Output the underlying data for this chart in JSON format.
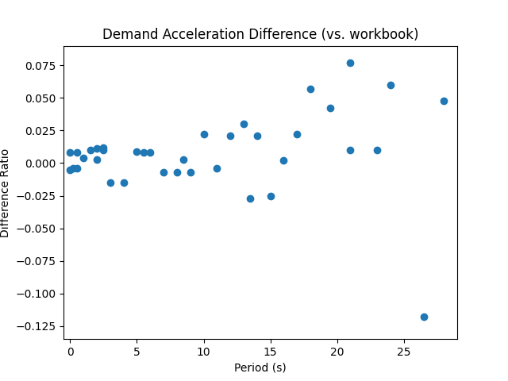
{
  "title": "Demand Acceleration Difference (vs. workbook)",
  "xlabel": "Period (s)",
  "ylabel": "Difference Ratio",
  "marker_color": "#1f77b4",
  "marker_size": 36,
  "x": [
    0.0,
    0.0,
    0.2,
    0.5,
    0.5,
    1.0,
    1.5,
    2.0,
    2.0,
    2.5,
    2.5,
    3.0,
    4.0,
    5.0,
    5.5,
    6.0,
    7.0,
    8.0,
    8.5,
    9.0,
    10.0,
    11.0,
    12.0,
    13.0,
    13.5,
    14.0,
    15.0,
    16.0,
    17.0,
    18.0,
    19.5,
    21.0,
    21.0,
    23.0,
    24.0,
    26.5,
    28.0
  ],
  "y": [
    0.008,
    -0.005,
    -0.004,
    0.008,
    -0.004,
    0.004,
    0.01,
    0.011,
    0.003,
    0.01,
    0.012,
    -0.015,
    -0.015,
    0.009,
    0.008,
    0.008,
    -0.007,
    -0.007,
    0.003,
    -0.007,
    0.022,
    -0.004,
    0.021,
    0.03,
    -0.027,
    0.021,
    -0.025,
    0.002,
    0.022,
    0.057,
    0.042,
    0.077,
    0.01,
    0.01,
    0.06,
    -0.118,
    0.048
  ],
  "xlim": [
    -0.5,
    29
  ],
  "ylim": [
    -0.135,
    0.09
  ],
  "xticks": [
    0,
    5,
    10,
    15,
    20,
    25
  ],
  "yticks": [
    -0.125,
    -0.1,
    -0.075,
    -0.05,
    -0.025,
    0.0,
    0.025,
    0.05,
    0.075
  ],
  "figsize": [
    6.4,
    4.8
  ],
  "dpi": 100,
  "title_fontsize": 12,
  "label_fontsize": 10
}
